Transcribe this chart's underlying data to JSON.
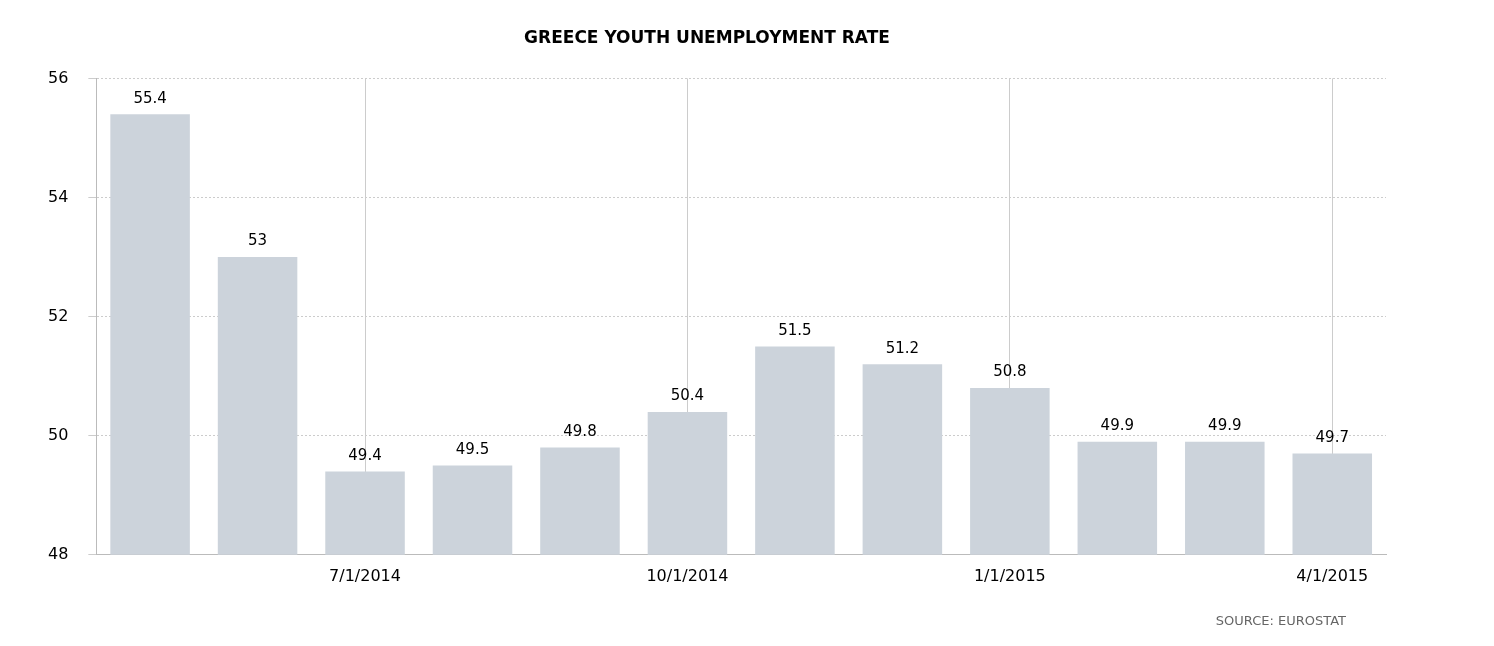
{
  "chart_data": {
    "type": "bar",
    "title": "GREECE YOUTH UNEMPLOYMENT RATE",
    "categories": [
      null,
      null,
      "7/1/2014",
      null,
      null,
      "10/1/2014",
      null,
      null,
      "1/1/2015",
      null,
      null,
      "4/1/2015"
    ],
    "values": [
      55.4,
      53,
      49.4,
      49.5,
      49.8,
      50.4,
      51.5,
      51.2,
      50.8,
      49.9,
      49.9,
      49.7
    ],
    "color": "#ccd3db",
    "ylim": [
      48,
      56
    ],
    "yticks": [
      48,
      50,
      52,
      54,
      56
    ],
    "grid": true,
    "data_labels": true,
    "annotations": [
      "SOURCE: EUROSTAT"
    ]
  }
}
